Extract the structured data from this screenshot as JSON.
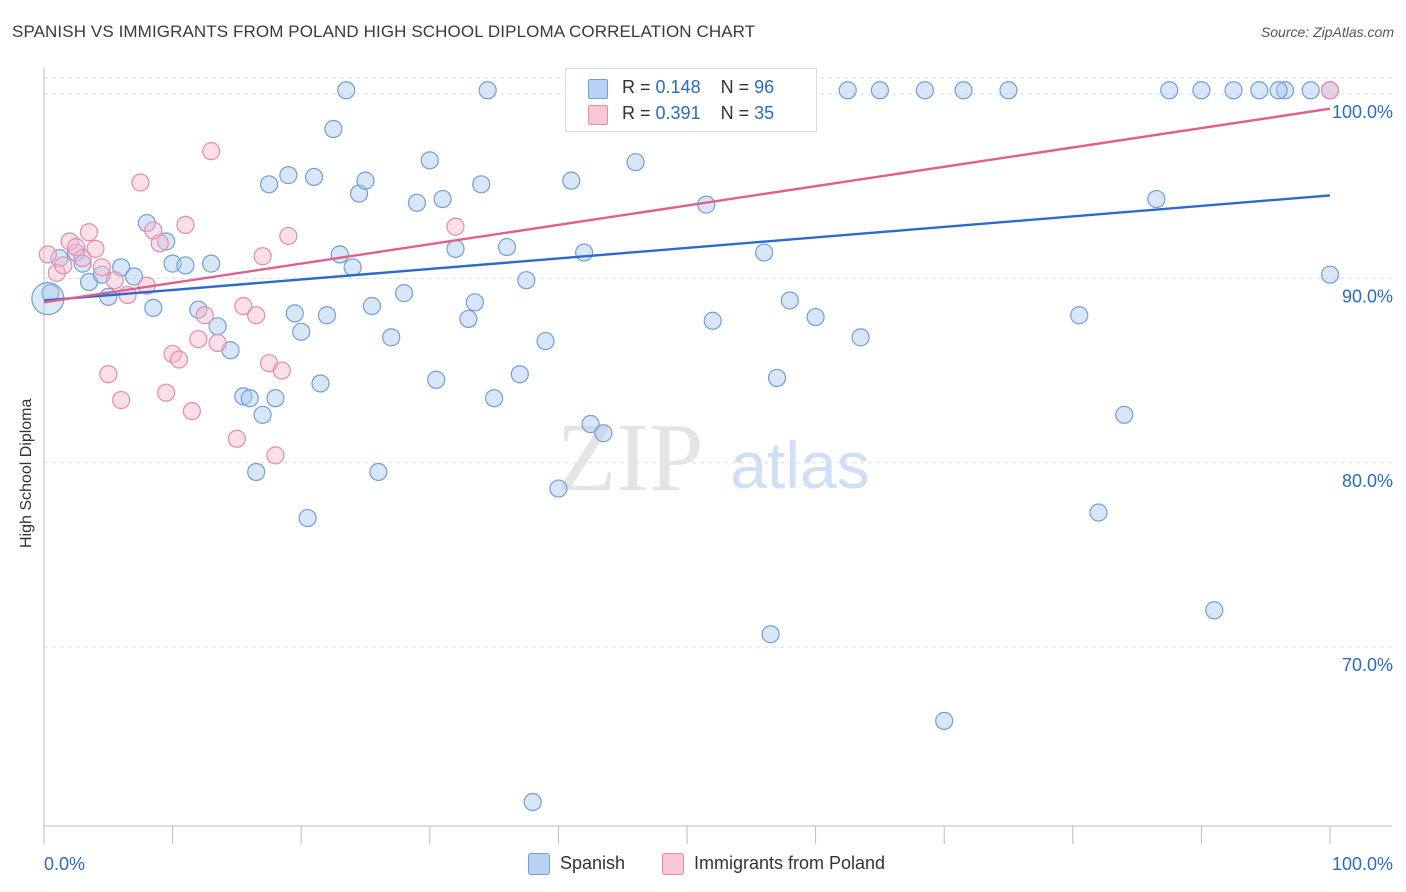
{
  "title": "SPANISH VS IMMIGRANTS FROM POLAND HIGH SCHOOL DIPLOMA CORRELATION CHART",
  "source": "Source: ZipAtlas.com",
  "watermark": {
    "zip": "ZIP",
    "atlas": "atlas"
  },
  "legend": {
    "r_label": "R =",
    "n_label": "N =",
    "spanish": {
      "r": "0.148",
      "n": "96"
    },
    "poland": {
      "r": "0.391",
      "n": "35"
    }
  },
  "bottom_legend": {
    "spanish": "Spanish",
    "poland": "Immigrants from Poland"
  },
  "colors": {
    "spanish_fill": "#a9c8f0",
    "spanish_stroke": "#6f9fdb",
    "spanish_line": "#2b6bcf",
    "poland_fill": "#f6b8cb",
    "poland_stroke": "#e88aa8",
    "poland_line": "#e0608c",
    "axis_text": "#2b6bbf",
    "grid": "#dddddd"
  },
  "chart_data": {
    "type": "scatter",
    "ylabel": "High School Diploma",
    "xlabel": "",
    "x_tick_labels": [
      "0.0%",
      "100.0%"
    ],
    "y_tick_labels": [
      "100.0%",
      "90.0%",
      "80.0%",
      "70.0%"
    ],
    "xlim": [
      0,
      100
    ],
    "ylim": [
      60.3,
      101.3
    ],
    "yticks": [
      100,
      90,
      80,
      70
    ],
    "grid": true,
    "series": [
      {
        "name": "Spanish",
        "trend": {
          "x": [
            0,
            100
          ],
          "y": [
            88.8,
            94.5
          ]
        },
        "points": [
          [
            0.5,
            89.2
          ],
          [
            1.2,
            91.1
          ],
          [
            2.5,
            91.4
          ],
          [
            3.0,
            90.8
          ],
          [
            3.5,
            89.8
          ],
          [
            4.5,
            90.2
          ],
          [
            5.0,
            89.0
          ],
          [
            6.0,
            90.6
          ],
          [
            7.0,
            90.1
          ],
          [
            8.0,
            93.0
          ],
          [
            8.5,
            88.4
          ],
          [
            9.5,
            92.0
          ],
          [
            10.0,
            90.8
          ],
          [
            11.0,
            90.7
          ],
          [
            12.0,
            88.3
          ],
          [
            13.0,
            90.8
          ],
          [
            13.5,
            87.4
          ],
          [
            14.5,
            86.1
          ],
          [
            15.5,
            83.6
          ],
          [
            16.0,
            83.5
          ],
          [
            16.5,
            79.5
          ],
          [
            17.0,
            82.6
          ],
          [
            17.5,
            95.1
          ],
          [
            18.0,
            83.5
          ],
          [
            19.0,
            95.6
          ],
          [
            19.5,
            88.1
          ],
          [
            20.0,
            87.1
          ],
          [
            20.5,
            77.0
          ],
          [
            21.0,
            95.5
          ],
          [
            21.5,
            84.3
          ],
          [
            22.0,
            88.0
          ],
          [
            22.5,
            98.1
          ],
          [
            23.0,
            91.3
          ],
          [
            23.5,
            100.2
          ],
          [
            24.0,
            90.6
          ],
          [
            24.5,
            94.6
          ],
          [
            25.0,
            95.3
          ],
          [
            25.5,
            88.5
          ],
          [
            26.0,
            79.5
          ],
          [
            27.0,
            86.8
          ],
          [
            28.0,
            89.2
          ],
          [
            29.0,
            94.1
          ],
          [
            30.0,
            96.4
          ],
          [
            30.5,
            84.5
          ],
          [
            31.0,
            94.3
          ],
          [
            32.0,
            91.6
          ],
          [
            33.0,
            87.8
          ],
          [
            33.5,
            88.7
          ],
          [
            34.0,
            95.1
          ],
          [
            34.5,
            100.2
          ],
          [
            35.0,
            83.5
          ],
          [
            36.0,
            91.7
          ],
          [
            37.0,
            84.8
          ],
          [
            37.5,
            89.9
          ],
          [
            38.0,
            61.6
          ],
          [
            39.0,
            86.6
          ],
          [
            40.0,
            78.6
          ],
          [
            41.0,
            95.3
          ],
          [
            42.0,
            91.4
          ],
          [
            42.5,
            82.1
          ],
          [
            43.5,
            81.6
          ],
          [
            45.0,
            100.2
          ],
          [
            46.0,
            96.3
          ],
          [
            47.5,
            100.2
          ],
          [
            50.5,
            100.2
          ],
          [
            51.5,
            94.0
          ],
          [
            52.0,
            87.7
          ],
          [
            53.5,
            100.0
          ],
          [
            55.0,
            100.2
          ],
          [
            56.0,
            91.4
          ],
          [
            56.5,
            70.7
          ],
          [
            57.0,
            84.6
          ],
          [
            58.0,
            88.8
          ],
          [
            59.0,
            100.2
          ],
          [
            60.0,
            87.9
          ],
          [
            62.5,
            100.2
          ],
          [
            63.5,
            86.8
          ],
          [
            65.0,
            100.2
          ],
          [
            68.5,
            100.2
          ],
          [
            70.0,
            66.0
          ],
          [
            71.5,
            100.2
          ],
          [
            75.0,
            100.2
          ],
          [
            80.5,
            88.0
          ],
          [
            82.0,
            77.3
          ],
          [
            84.0,
            82.6
          ],
          [
            86.5,
            94.3
          ],
          [
            87.5,
            100.2
          ],
          [
            90.0,
            100.2
          ],
          [
            91.0,
            72.0
          ],
          [
            92.5,
            100.2
          ],
          [
            94.5,
            100.2
          ],
          [
            96.5,
            100.2
          ],
          [
            98.5,
            100.2
          ],
          [
            100.0,
            100.2
          ],
          [
            100.0,
            90.2
          ],
          [
            96.0,
            100.2
          ],
          [
            58.5,
            100.2
          ]
        ]
      },
      {
        "name": "Immigrants from Poland",
        "trend": {
          "x": [
            0,
            100
          ],
          "y": [
            88.7,
            99.2
          ]
        },
        "points": [
          [
            0.3,
            91.3
          ],
          [
            1.0,
            90.3
          ],
          [
            1.5,
            90.7
          ],
          [
            2.0,
            92.0
          ],
          [
            2.5,
            91.7
          ],
          [
            3.0,
            91.1
          ],
          [
            3.5,
            92.5
          ],
          [
            4.0,
            91.6
          ],
          [
            4.5,
            90.6
          ],
          [
            5.0,
            84.8
          ],
          [
            5.5,
            89.9
          ],
          [
            6.0,
            83.4
          ],
          [
            6.5,
            89.1
          ],
          [
            7.5,
            95.2
          ],
          [
            8.0,
            89.6
          ],
          [
            8.5,
            92.6
          ],
          [
            9.0,
            91.9
          ],
          [
            9.5,
            83.8
          ],
          [
            10.0,
            85.9
          ],
          [
            10.5,
            85.6
          ],
          [
            11.0,
            92.9
          ],
          [
            11.5,
            82.8
          ],
          [
            12.0,
            86.7
          ],
          [
            12.5,
            88.0
          ],
          [
            13.0,
            96.9
          ],
          [
            13.5,
            86.5
          ],
          [
            15.0,
            81.3
          ],
          [
            15.5,
            88.5
          ],
          [
            16.5,
            88.0
          ],
          [
            17.0,
            91.2
          ],
          [
            17.5,
            85.4
          ],
          [
            18.0,
            80.4
          ],
          [
            18.5,
            85.0
          ],
          [
            19.0,
            92.3
          ],
          [
            32.0,
            92.8
          ],
          [
            100.0,
            100.2
          ]
        ]
      }
    ]
  }
}
